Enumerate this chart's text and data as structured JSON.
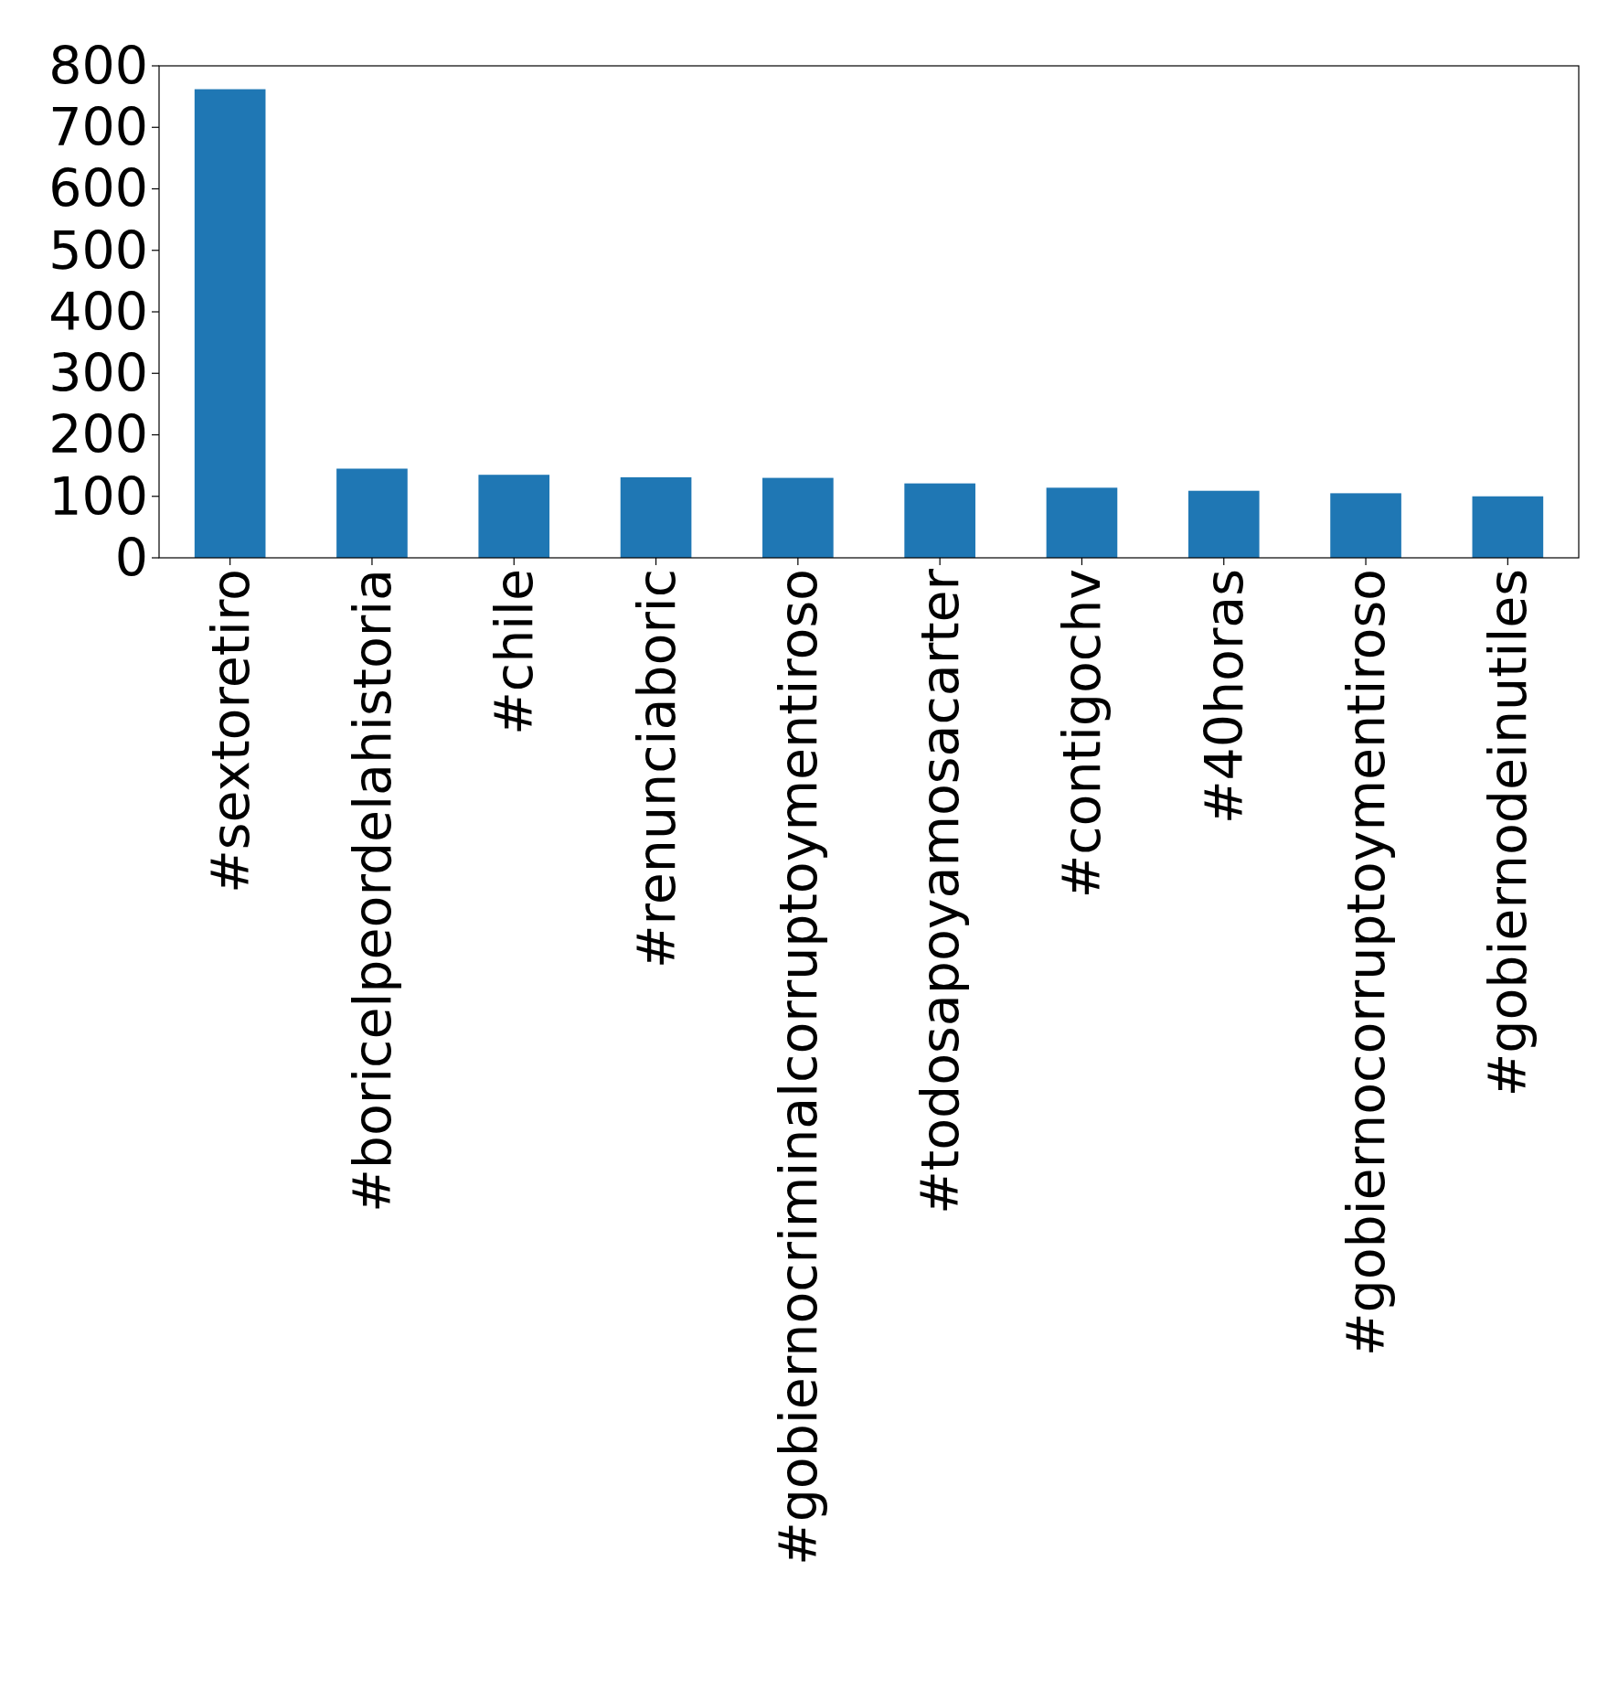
{
  "chart_data": {
    "type": "bar",
    "categories": [
      "#sextoretiro",
      "#boricelpeordelahistoria",
      "#chile",
      "#renunciaboric",
      "#gobiernocriminalcorruptoymentiroso",
      "#todosapoyamosacarter",
      "#contigochv",
      "#40horas",
      "#gobiernocorruptoymentiroso",
      "#gobiernodeinutiles"
    ],
    "values": [
      762,
      145,
      135,
      131,
      130,
      121,
      114,
      109,
      105,
      100
    ],
    "color": "#1f77b4",
    "ylim": [
      0,
      800
    ],
    "yticks": [
      0,
      100,
      200,
      300,
      400,
      500,
      600,
      700,
      800
    ],
    "grid": false
  }
}
